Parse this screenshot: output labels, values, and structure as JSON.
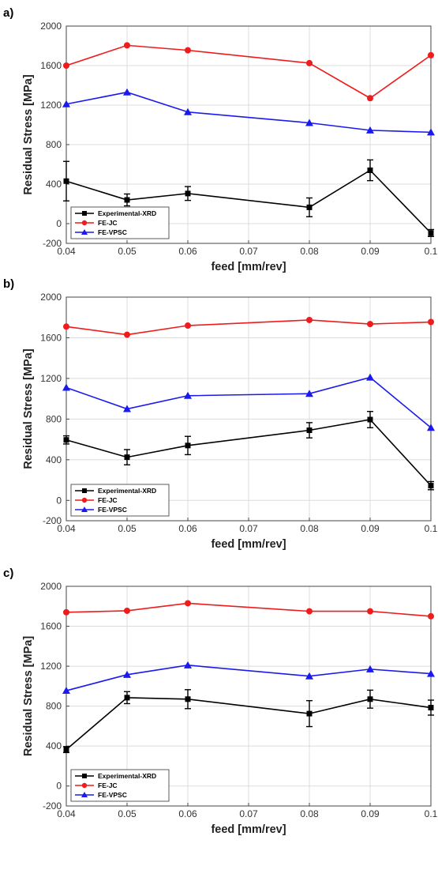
{
  "figure": {
    "colors": {
      "Experimental-XRD": "#000000",
      "FE-JC": "#ee1c1c",
      "FE-VPSC": "#1a1aee"
    }
  },
  "chart_data": [
    {
      "panel": "a)",
      "type": "line",
      "xlabel": "feed [mm/rev]",
      "ylabel": "Residual Stress [MPa]",
      "x": [
        0.04,
        0.05,
        0.06,
        0.08,
        0.09,
        0.1
      ],
      "xticks": [
        "0.04",
        "0.05",
        "0.06",
        "0.07",
        "0.08",
        "0.09",
        "0.1"
      ],
      "yticks": [
        "-200",
        "0",
        "400",
        "800",
        "1200",
        "1600",
        "2000"
      ],
      "xlim": [
        0.04,
        0.1
      ],
      "ylim": [
        -200,
        2000
      ],
      "grid": true,
      "legend_position": "bottom-left",
      "series": [
        {
          "name": "Experimental-XRD",
          "marker": "square",
          "values": [
            430,
            240,
            305,
            165,
            540,
            -95
          ],
          "errors": [
            200,
            60,
            70,
            95,
            105,
            35
          ]
        },
        {
          "name": "FE-JC",
          "marker": "circle",
          "values": [
            1600,
            1805,
            1755,
            1625,
            1270,
            1705
          ]
        },
        {
          "name": "FE-VPSC",
          "marker": "triangle",
          "values": [
            1210,
            1330,
            1130,
            1020,
            945,
            925
          ]
        }
      ]
    },
    {
      "panel": "b)",
      "type": "line",
      "xlabel": "feed [mm/rev]",
      "ylabel": "Residual Stress [MPa]",
      "x": [
        0.04,
        0.05,
        0.06,
        0.08,
        0.09,
        0.1
      ],
      "xticks": [
        "0.04",
        "0.05",
        "0.06",
        "0.07",
        "0.08",
        "0.09",
        "0.1"
      ],
      "yticks": [
        "-200",
        "0",
        "400",
        "800",
        "1200",
        "1600",
        "2000"
      ],
      "xlim": [
        0.04,
        0.1
      ],
      "ylim": [
        -200,
        2000
      ],
      "grid": true,
      "legend_position": "bottom-left",
      "series": [
        {
          "name": "Experimental-XRD",
          "marker": "square",
          "values": [
            595,
            425,
            540,
            690,
            795,
            145
          ],
          "errors": [
            40,
            75,
            90,
            75,
            80,
            40
          ]
        },
        {
          "name": "FE-JC",
          "marker": "circle",
          "values": [
            1710,
            1630,
            1720,
            1775,
            1735,
            1755
          ]
        },
        {
          "name": "FE-VPSC",
          "marker": "triangle",
          "values": [
            1110,
            900,
            1030,
            1050,
            1210,
            715
          ]
        }
      ]
    },
    {
      "panel": "c)",
      "type": "line",
      "xlabel": "feed [mm/rev]",
      "ylabel": "Residual Stress [MPa]",
      "x": [
        0.04,
        0.05,
        0.06,
        0.08,
        0.09,
        0.1
      ],
      "xticks": [
        "0.04",
        "0.05",
        "0.06",
        "0.07",
        "0.08",
        "0.09",
        "0.1"
      ],
      "yticks": [
        "-200",
        "0",
        "400",
        "800",
        "1200",
        "1600",
        "2000"
      ],
      "xlim": [
        0.04,
        0.1
      ],
      "ylim": [
        -200,
        2000
      ],
      "grid": true,
      "legend_position": "bottom-left",
      "series": [
        {
          "name": "Experimental-XRD",
          "marker": "square",
          "values": [
            365,
            885,
            870,
            725,
            870,
            785
          ],
          "errors": [
            30,
            60,
            95,
            130,
            90,
            75
          ]
        },
        {
          "name": "FE-JC",
          "marker": "circle",
          "values": [
            1740,
            1755,
            1830,
            1750,
            1750,
            1700
          ]
        },
        {
          "name": "FE-VPSC",
          "marker": "triangle",
          "values": [
            955,
            1115,
            1210,
            1100,
            1170,
            1125
          ]
        }
      ]
    }
  ]
}
